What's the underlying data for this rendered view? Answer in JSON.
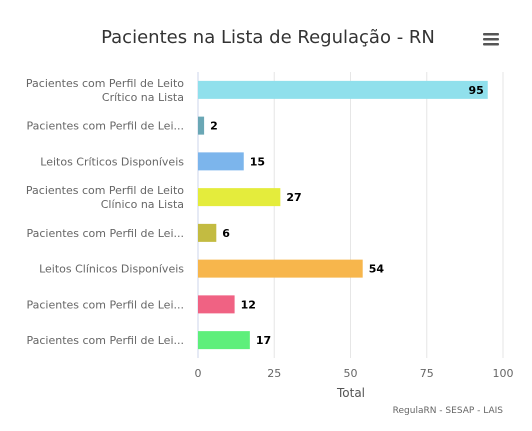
{
  "chart_data": {
    "type": "bar",
    "orientation": "horizontal",
    "title": "Pacientes na Lista de Regulação - RN",
    "xlabel": "Total",
    "ylabel": "",
    "xlim": [
      0,
      100
    ],
    "xticks": [
      0,
      25,
      50,
      75,
      100
    ],
    "grid": true,
    "legend": "none",
    "categories": [
      [
        "Pacientes com Perfil de Leito",
        "Crítico na Lista"
      ],
      [
        "Pacientes com Perfil de Lei..."
      ],
      [
        "Leitos Críticos Disponíveis"
      ],
      [
        "Pacientes com Perfil de Leito",
        "Clínico na Lista"
      ],
      [
        "Pacientes com Perfil de Lei..."
      ],
      [
        "Leitos Clínicos Disponíveis"
      ],
      [
        "Pacientes com Perfil de Lei..."
      ],
      [
        "Pacientes com Perfil de Lei..."
      ]
    ],
    "values": [
      95,
      2,
      15,
      27,
      6,
      54,
      12,
      17
    ],
    "colors": [
      "#90e0ec",
      "#6aa7b5",
      "#7cb5ec",
      "#e4ec3c",
      "#c3bb41",
      "#f7b64c",
      "#f06283",
      "#5eef7b"
    ]
  },
  "credits": "RegulaRN - SESAP - LAIS",
  "icons": {
    "menu": "hamburger-menu-icon"
  }
}
